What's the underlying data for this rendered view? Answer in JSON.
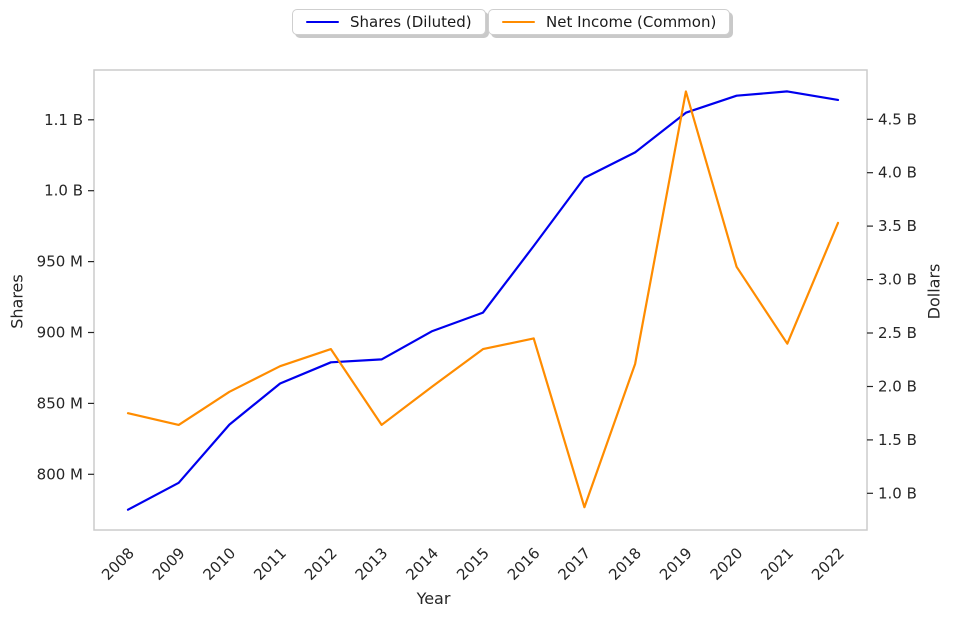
{
  "chart_data": {
    "type": "line",
    "title": "",
    "xlabel": "Year",
    "ylabel_left": "Shares",
    "ylabel_right": "Dollars",
    "grid": false,
    "legend_position": "top-center-outside",
    "x": [
      2008,
      2009,
      2010,
      2011,
      2012,
      2013,
      2014,
      2015,
      2016,
      2017,
      2018,
      2019,
      2020,
      2021,
      2022
    ],
    "series": [
      {
        "name": "Shares (Diluted)",
        "axis": "left",
        "unit": "shares (millions)",
        "color": "#0000ee",
        "values": [
          775,
          794,
          835,
          864,
          879,
          881,
          901,
          914,
          961,
          1009,
          1027,
          1055,
          1067,
          1070,
          1064
        ]
      },
      {
        "name": "Net Income (Common)",
        "axis": "right",
        "unit": "dollars (billions)",
        "color": "#ff8c00",
        "values": [
          1.75,
          1.64,
          1.95,
          2.19,
          2.35,
          1.64,
          2.0,
          2.35,
          2.45,
          0.87,
          2.21,
          4.76,
          3.12,
          2.4,
          3.53
        ]
      }
    ],
    "left_axis": {
      "label": "Shares",
      "range": [
        760.7,
        1085.1
      ],
      "ticks": [
        800,
        850,
        900,
        950,
        1000,
        1050
      ],
      "tick_labels": [
        "800 M",
        "850 M",
        "900 M",
        "950 M",
        "1.0 B",
        "1.1 B"
      ]
    },
    "right_axis": {
      "label": "Dollars",
      "range": [
        0.657,
        4.961
      ],
      "ticks": [
        1.0,
        1.5,
        2.0,
        2.5,
        3.0,
        3.5,
        4.0,
        4.5
      ],
      "tick_labels": [
        "1.0 B",
        "1.5 B",
        "2.0 B",
        "2.5 B",
        "3.0 B",
        "3.5 B",
        "4.0 B",
        "4.5 B"
      ]
    },
    "legend": [
      "Shares (Diluted)",
      "Net Income (Common)"
    ],
    "style": {
      "text_color": "#262626",
      "tick_color": "#262626",
      "spine_color": "#cccccc"
    }
  }
}
